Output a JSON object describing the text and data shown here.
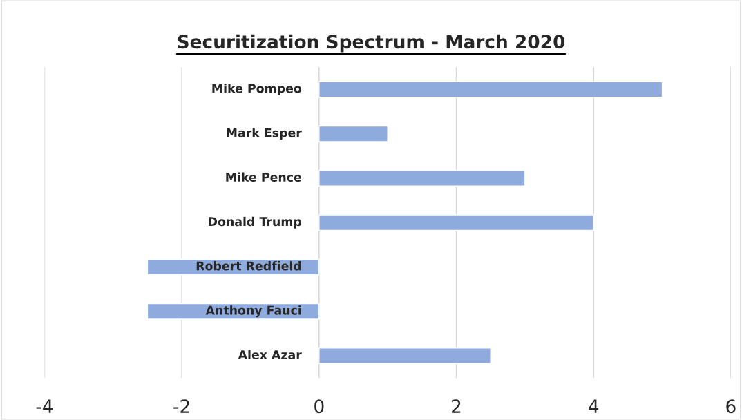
{
  "chart_data": {
    "type": "bar",
    "orientation": "horizontal",
    "title": "Securitization Spectrum - March 2020",
    "categories": [
      "Mike Pompeo",
      "Mark Esper",
      "Mike Pence",
      "Donald Trump",
      "Robert Redfield",
      "Anthony Fauci",
      "Alex Azar"
    ],
    "values": [
      5,
      1,
      3,
      4,
      -2.5,
      -2.5,
      2.5
    ],
    "color": "#8faadc",
    "xlim": [
      -4,
      6
    ],
    "xticks": [
      -4,
      -2,
      0,
      2,
      4,
      6
    ],
    "grid": "x",
    "legend": false
  }
}
